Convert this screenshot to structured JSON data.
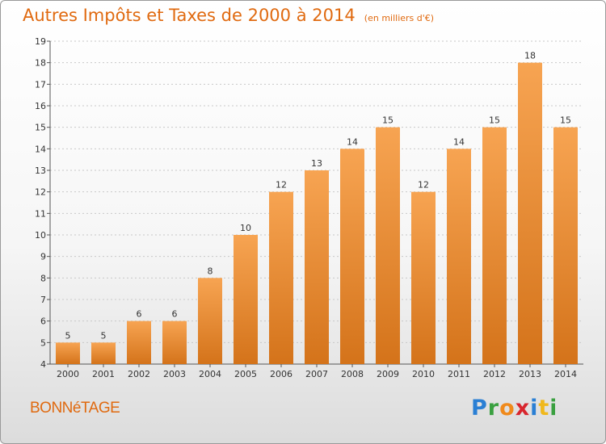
{
  "title": "Autres Impôts et Taxes de 2000 à 2014",
  "unit": "(en milliers d'€)",
  "commune": "BONNéTAGE",
  "brand": "Proxiti",
  "colors": {
    "accent": "#e06a10",
    "bar_top": "#f7a452",
    "bar_bottom": "#d4731a",
    "axis": "#555555",
    "grid": "#c8c8c8"
  },
  "chart_data": {
    "type": "bar",
    "title": "Autres Impôts et Taxes de 2000 à 2014",
    "subtitle": "(en milliers d'€)",
    "xlabel": "",
    "ylabel": "",
    "categories": [
      "2000",
      "2001",
      "2002",
      "2003",
      "2004",
      "2005",
      "2006",
      "2007",
      "2008",
      "2009",
      "2010",
      "2011",
      "2012",
      "2013",
      "2014"
    ],
    "values": [
      5,
      5,
      6,
      6,
      8,
      10,
      12,
      13,
      14,
      15,
      12,
      14,
      15,
      18,
      15
    ],
    "ylim": [
      4,
      19
    ],
    "yticks": [
      4,
      5,
      6,
      7,
      8,
      9,
      10,
      11,
      12,
      13,
      14,
      15,
      16,
      17,
      18,
      19
    ],
    "grid": true
  }
}
